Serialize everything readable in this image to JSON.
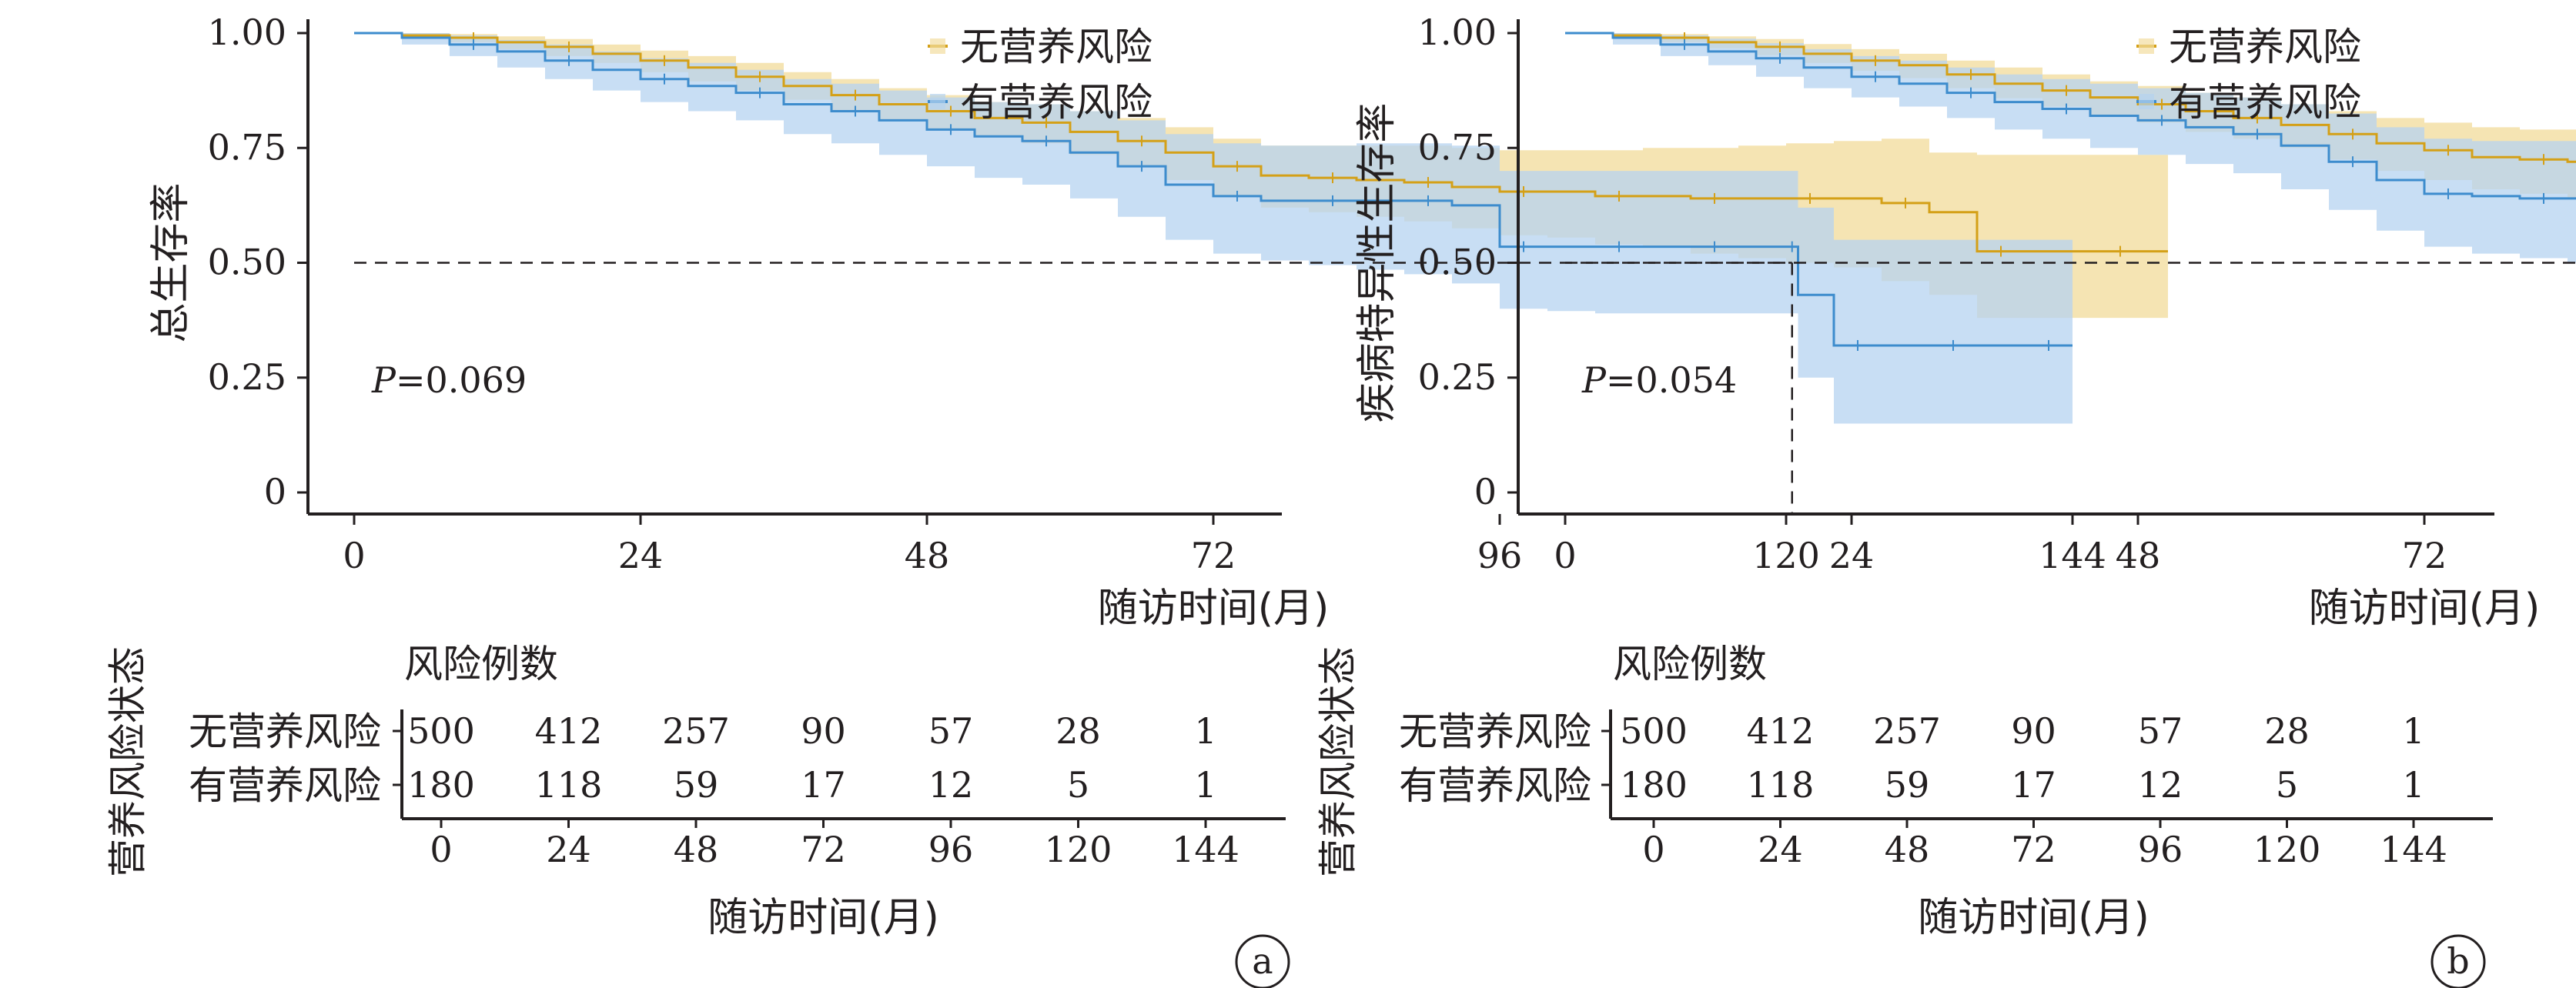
{
  "colors": {
    "no_risk": "#d4a017",
    "no_risk_band": "#f2dda0",
    "risk": "#3d8ccd",
    "risk_band": "#b5d3f0",
    "axis": "#231f20"
  },
  "panels": [
    {
      "label": "a",
      "ylabel": "总生存率",
      "xlabel": "随访时间(月)",
      "p_prefix": "P",
      "p_value": "=0.069",
      "legend": [
        "无营养风险",
        "有营养风险"
      ],
      "yticks": [
        "0",
        "0.25",
        "0.50",
        "0.75",
        "1.00"
      ],
      "xticks": [
        "0",
        "24",
        "48",
        "72",
        "96",
        "120",
        "144"
      ],
      "risk_table": {
        "header": "风险例数",
        "side_label": "营养风险状态",
        "row_labels": [
          "无营养风险",
          "有营养风险"
        ],
        "counts": [
          [
            "500",
            "412",
            "257",
            "90",
            "57",
            "28",
            "1"
          ],
          [
            "180",
            "118",
            "59",
            "17",
            "12",
            "5",
            "1"
          ]
        ],
        "xticks": [
          "0",
          "24",
          "48",
          "72",
          "96",
          "120",
          "144"
        ],
        "xlabel": "随访时间(月)"
      }
    },
    {
      "label": "b",
      "ylabel": "疾病特异性生存率",
      "xlabel": "随访时间(月)",
      "p_prefix": "P",
      "p_value": "=0.054",
      "legend": [
        "无营养风险",
        "有营养风险"
      ],
      "yticks": [
        "0",
        "0.25",
        "0.50",
        "0.75",
        "1.00"
      ],
      "xticks": [
        "0",
        "24",
        "48",
        "72",
        "96",
        "120",
        "144"
      ],
      "risk_table": {
        "header": "风险例数",
        "side_label": "营养风险状态",
        "row_labels": [
          "无营养风险",
          "有营养风险"
        ],
        "counts": [
          [
            "500",
            "412",
            "257",
            "90",
            "57",
            "28",
            "1"
          ],
          [
            "180",
            "118",
            "59",
            "17",
            "12",
            "5",
            "1"
          ]
        ],
        "xticks": [
          "0",
          "24",
          "48",
          "72",
          "96",
          "120",
          "144"
        ],
        "xlabel": "随访时间(月)"
      }
    }
  ],
  "chart_data": [
    {
      "type": "line",
      "subtype": "kaplan-meier",
      "ylabel": "总生存率",
      "xlabel": "随访时间(月)",
      "xlim": [
        0,
        150
      ],
      "ylim": [
        0,
        1
      ],
      "xticks": [
        0,
        24,
        48,
        72,
        96,
        120,
        144
      ],
      "yticks": [
        0,
        0.25,
        0.5,
        0.75,
        1
      ],
      "median_line": {
        "y": 0.5,
        "x_end": 120.5
      },
      "p_value": "P=0.069",
      "legend_placement": "top-right",
      "series": [
        {
          "name": "无营养风险",
          "x": [
            0,
            4,
            8,
            12,
            16,
            20,
            24,
            28,
            32,
            36,
            40,
            44,
            48,
            52,
            56,
            60,
            64,
            68,
            72,
            76,
            80,
            84,
            88,
            92,
            96,
            100,
            104,
            108,
            112,
            116,
            120,
            124,
            128,
            132,
            136,
            140,
            144,
            152
          ],
          "y": [
            1.0,
            0.995,
            0.99,
            0.98,
            0.97,
            0.955,
            0.94,
            0.925,
            0.905,
            0.885,
            0.865,
            0.845,
            0.83,
            0.815,
            0.805,
            0.785,
            0.765,
            0.74,
            0.71,
            0.69,
            0.685,
            0.68,
            0.675,
            0.665,
            0.655,
            0.655,
            0.645,
            0.645,
            0.64,
            0.64,
            0.64,
            0.64,
            0.63,
            0.61,
            0.525,
            0.525,
            0.525,
            0.525
          ],
          "ci_lower": [
            1.0,
            0.99,
            0.98,
            0.965,
            0.95,
            0.935,
            0.915,
            0.895,
            0.875,
            0.855,
            0.83,
            0.81,
            0.79,
            0.775,
            0.76,
            0.735,
            0.71,
            0.68,
            0.645,
            0.62,
            0.61,
            0.6,
            0.59,
            0.575,
            0.56,
            0.555,
            0.54,
            0.535,
            0.52,
            0.51,
            0.5,
            0.49,
            0.46,
            0.43,
            0.38,
            0.38,
            0.38,
            0.38
          ],
          "ci_upper": [
            1.0,
            1.0,
            0.998,
            0.993,
            0.987,
            0.975,
            0.962,
            0.95,
            0.935,
            0.915,
            0.9,
            0.88,
            0.865,
            0.85,
            0.845,
            0.83,
            0.815,
            0.795,
            0.77,
            0.755,
            0.755,
            0.755,
            0.755,
            0.75,
            0.745,
            0.745,
            0.745,
            0.75,
            0.75,
            0.755,
            0.76,
            0.765,
            0.77,
            0.74,
            0.735,
            0.735,
            0.735,
            0.735
          ]
        },
        {
          "name": "有营养风险",
          "x": [
            0,
            4,
            8,
            12,
            16,
            20,
            24,
            28,
            32,
            36,
            40,
            44,
            48,
            52,
            56,
            60,
            64,
            68,
            72,
            76,
            80,
            84,
            88,
            92,
            96,
            100,
            104,
            108,
            112,
            116,
            120,
            121,
            124,
            128,
            132,
            136,
            140,
            144
          ],
          "y": [
            1.0,
            0.99,
            0.975,
            0.96,
            0.94,
            0.92,
            0.9,
            0.885,
            0.87,
            0.845,
            0.83,
            0.81,
            0.79,
            0.775,
            0.765,
            0.74,
            0.71,
            0.67,
            0.645,
            0.635,
            0.635,
            0.635,
            0.635,
            0.625,
            0.535,
            0.535,
            0.535,
            0.535,
            0.535,
            0.535,
            0.535,
            0.43,
            0.32,
            0.32,
            0.32,
            0.32,
            0.32,
            0.32
          ],
          "ci_lower": [
            1.0,
            0.975,
            0.95,
            0.925,
            0.9,
            0.875,
            0.85,
            0.83,
            0.81,
            0.78,
            0.76,
            0.735,
            0.71,
            0.685,
            0.67,
            0.64,
            0.6,
            0.55,
            0.52,
            0.505,
            0.495,
            0.485,
            0.475,
            0.455,
            0.4,
            0.395,
            0.39,
            0.39,
            0.39,
            0.39,
            0.39,
            0.25,
            0.15,
            0.15,
            0.15,
            0.15,
            0.15,
            0.15
          ],
          "ci_upper": [
            1.0,
            1.0,
            0.995,
            0.985,
            0.975,
            0.96,
            0.945,
            0.935,
            0.92,
            0.9,
            0.89,
            0.875,
            0.86,
            0.85,
            0.845,
            0.83,
            0.81,
            0.78,
            0.76,
            0.755,
            0.755,
            0.76,
            0.76,
            0.755,
            0.7,
            0.7,
            0.7,
            0.7,
            0.7,
            0.7,
            0.7,
            0.62,
            0.55,
            0.55,
            0.55,
            0.55,
            0.55,
            0.55
          ]
        }
      ]
    },
    {
      "type": "line",
      "subtype": "kaplan-meier",
      "ylabel": "疾病特异性生存率",
      "xlabel": "随访时间(月)",
      "xlim": [
        0,
        150
      ],
      "ylim": [
        0,
        1
      ],
      "xticks": [
        0,
        24,
        48,
        72,
        96,
        120,
        144
      ],
      "yticks": [
        0,
        0.25,
        0.5,
        0.75,
        1
      ],
      "median_line": {
        "y": 0.5,
        "x_end": 124
      },
      "p_value": "P=0.054",
      "legend_placement": "top-right",
      "series": [
        {
          "name": "无营养风险",
          "x": [
            0,
            4,
            8,
            12,
            16,
            20,
            24,
            28,
            32,
            36,
            40,
            44,
            48,
            52,
            56,
            60,
            64,
            68,
            72,
            76,
            80,
            84,
            88,
            92,
            96,
            100,
            104,
            108,
            112,
            116,
            120,
            124,
            128,
            132,
            136,
            140,
            144,
            152
          ],
          "y": [
            1.0,
            0.995,
            0.99,
            0.98,
            0.97,
            0.955,
            0.94,
            0.93,
            0.91,
            0.89,
            0.875,
            0.86,
            0.845,
            0.83,
            0.815,
            0.8,
            0.78,
            0.76,
            0.745,
            0.73,
            0.725,
            0.72,
            0.72,
            0.71,
            0.7,
            0.695,
            0.69,
            0.69,
            0.685,
            0.685,
            0.685,
            0.68,
            0.675,
            0.655,
            0.56,
            0.56,
            0.56,
            0.56
          ],
          "ci_lower": [
            1.0,
            0.99,
            0.98,
            0.967,
            0.952,
            0.935,
            0.918,
            0.902,
            0.88,
            0.858,
            0.84,
            0.82,
            0.805,
            0.785,
            0.77,
            0.75,
            0.725,
            0.7,
            0.68,
            0.66,
            0.65,
            0.64,
            0.635,
            0.62,
            0.605,
            0.595,
            0.585,
            0.58,
            0.57,
            0.565,
            0.56,
            0.55,
            0.53,
            0.51,
            0.4,
            0.4,
            0.4,
            0.4
          ],
          "ci_upper": [
            1.0,
            1.0,
            0.998,
            0.993,
            0.987,
            0.976,
            0.965,
            0.955,
            0.94,
            0.925,
            0.91,
            0.895,
            0.885,
            0.87,
            0.86,
            0.845,
            0.83,
            0.815,
            0.805,
            0.795,
            0.79,
            0.79,
            0.79,
            0.785,
            0.78,
            0.78,
            0.78,
            0.78,
            0.78,
            0.78,
            0.78,
            0.78,
            0.78,
            0.78,
            0.78,
            0.78,
            0.78,
            0.78
          ]
        },
        {
          "name": "有营养风险",
          "x": [
            0,
            4,
            8,
            12,
            16,
            20,
            24,
            28,
            32,
            36,
            40,
            44,
            48,
            52,
            56,
            60,
            64,
            68,
            72,
            76,
            80,
            84,
            88,
            92,
            96,
            100,
            104,
            108,
            112,
            116,
            120,
            124,
            128,
            132,
            136,
            140,
            144
          ],
          "y": [
            1.0,
            0.99,
            0.975,
            0.96,
            0.945,
            0.925,
            0.905,
            0.89,
            0.87,
            0.85,
            0.835,
            0.82,
            0.81,
            0.795,
            0.78,
            0.755,
            0.72,
            0.68,
            0.65,
            0.645,
            0.64,
            0.64,
            0.64,
            0.62,
            0.54,
            0.54,
            0.54,
            0.54,
            0.54,
            0.54,
            0.54,
            0.405,
            0.405,
            0.405,
            0.405,
            0.405,
            0.405
          ],
          "ci_lower": [
            1.0,
            0.975,
            0.95,
            0.93,
            0.905,
            0.88,
            0.86,
            0.84,
            0.815,
            0.79,
            0.77,
            0.75,
            0.735,
            0.715,
            0.695,
            0.66,
            0.615,
            0.57,
            0.535,
            0.52,
            0.51,
            0.5,
            0.49,
            0.47,
            0.4,
            0.4,
            0.4,
            0.4,
            0.4,
            0.4,
            0.4,
            0.215,
            0.215,
            0.215,
            0.215,
            0.215,
            0.215
          ],
          "ci_upper": [
            1.0,
            1.0,
            0.995,
            0.988,
            0.978,
            0.965,
            0.95,
            0.94,
            0.925,
            0.91,
            0.9,
            0.89,
            0.88,
            0.87,
            0.86,
            0.845,
            0.825,
            0.795,
            0.77,
            0.765,
            0.765,
            0.765,
            0.765,
            0.765,
            0.705,
            0.705,
            0.705,
            0.705,
            0.705,
            0.705,
            0.705,
            0.775,
            0.775,
            0.775,
            0.775,
            0.775,
            0.775
          ]
        }
      ]
    }
  ]
}
